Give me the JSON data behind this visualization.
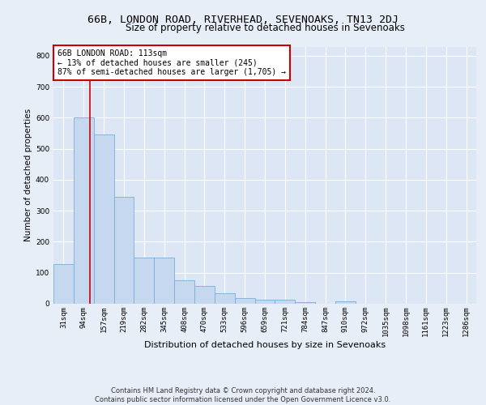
{
  "title": "66B, LONDON ROAD, RIVERHEAD, SEVENOAKS, TN13 2DJ",
  "subtitle": "Size of property relative to detached houses in Sevenoaks",
  "xlabel": "Distribution of detached houses by size in Sevenoaks",
  "ylabel": "Number of detached properties",
  "bar_labels": [
    "31sqm",
    "94sqm",
    "157sqm",
    "219sqm",
    "282sqm",
    "345sqm",
    "408sqm",
    "470sqm",
    "533sqm",
    "596sqm",
    "659sqm",
    "721sqm",
    "784sqm",
    "847sqm",
    "910sqm",
    "972sqm",
    "1035sqm",
    "1098sqm",
    "1161sqm",
    "1223sqm",
    "1286sqm"
  ],
  "bar_values": [
    127,
    600,
    547,
    345,
    148,
    148,
    75,
    57,
    35,
    18,
    14,
    13,
    6,
    0,
    8,
    0,
    0,
    0,
    0,
    0,
    0
  ],
  "bar_color": "#c5d8ef",
  "bar_edge_color": "#7aadd4",
  "vline_x": 1.3,
  "vline_color": "#cc0000",
  "ylim": [
    0,
    830
  ],
  "yticks": [
    0,
    100,
    200,
    300,
    400,
    500,
    600,
    700,
    800
  ],
  "annotation_text": "66B LONDON ROAD: 113sqm\n← 13% of detached houses are smaller (245)\n87% of semi-detached houses are larger (1,705) →",
  "annotation_box_color": "#cc0000",
  "footer_line1": "Contains HM Land Registry data © Crown copyright and database right 2024.",
  "footer_line2": "Contains public sector information licensed under the Open Government Licence v3.0.",
  "bg_color": "#e8eef8",
  "plot_bg_color": "#dce6f5",
  "grid_color": "#ffffff",
  "title_fontsize": 9.5,
  "subtitle_fontsize": 8.5,
  "xlabel_fontsize": 8,
  "ylabel_fontsize": 7.5,
  "tick_fontsize": 6.5,
  "annotation_fontsize": 7,
  "footer_fontsize": 6
}
